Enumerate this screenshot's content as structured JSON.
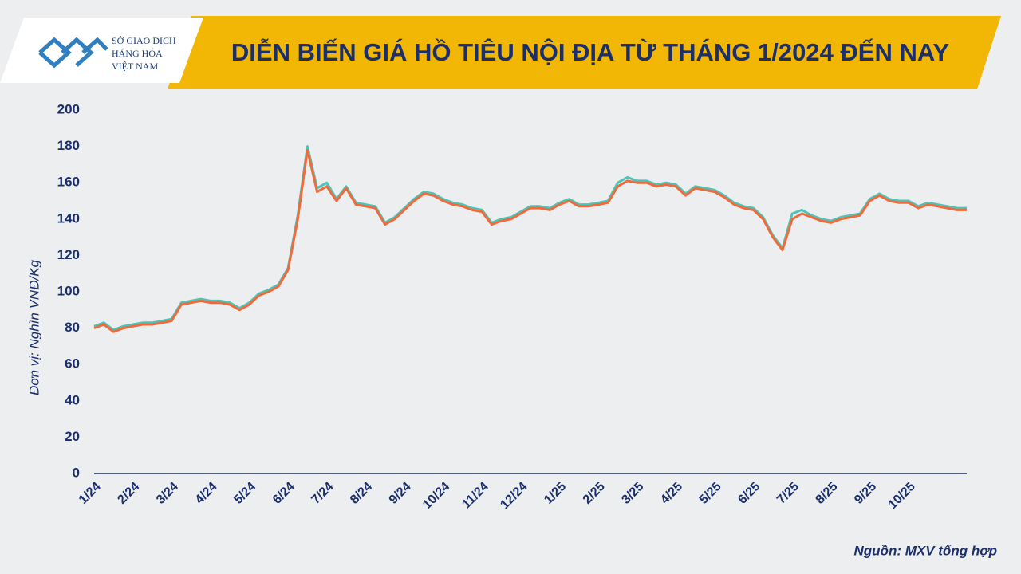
{
  "logo": {
    "lines": [
      "SỞ GIAO DỊCH",
      "HÀNG HÓA",
      "VIỆT NAM"
    ]
  },
  "chart_data": {
    "type": "line",
    "title": "DIỄN BIẾN GIÁ HỒ TIÊU NỘI ĐỊA TỪ THÁNG 1/2024 ĐẾN NAY",
    "y_label": "Đơn vị: Nghìn VNĐ/Kg",
    "source": "Nguồn: MXV tổng hợp",
    "categories": [
      "1/24",
      null,
      null,
      null,
      "2/24",
      null,
      null,
      null,
      "3/24",
      null,
      null,
      null,
      "4/24",
      null,
      null,
      null,
      "5/24",
      null,
      null,
      null,
      "6/24",
      null,
      null,
      null,
      "7/24",
      null,
      null,
      null,
      "8/24",
      null,
      null,
      null,
      "9/24",
      null,
      null,
      null,
      "10/24",
      null,
      null,
      null,
      "11/24",
      null,
      null,
      null,
      "12/24",
      null,
      null,
      null,
      "1/25",
      null,
      null,
      null,
      "2/25",
      null,
      null,
      null,
      "3/25",
      null,
      null,
      null,
      "4/25",
      null,
      null,
      null,
      "5/25",
      null,
      null,
      null,
      "6/25",
      null,
      null,
      null,
      "7/25",
      null,
      null,
      null,
      "8/25",
      null,
      null,
      null,
      "9/25",
      null,
      null,
      null,
      "10/25",
      null,
      null,
      null,
      null,
      null,
      null
    ],
    "series": [
      {
        "color": "#4dc4b8",
        "values": [
          81,
          83,
          79,
          81,
          82,
          83,
          83,
          84,
          85,
          94,
          95,
          96,
          95,
          95,
          94,
          91,
          94,
          99,
          101,
          104,
          113,
          142,
          180,
          157,
          160,
          151,
          158,
          149,
          148,
          147,
          138,
          141,
          146,
          151,
          155,
          154,
          151,
          149,
          148,
          146,
          145,
          138,
          140,
          141,
          144,
          147,
          147,
          146,
          149,
          151,
          148,
          148,
          149,
          150,
          160,
          163,
          161,
          161,
          159,
          160,
          159,
          154,
          158,
          157,
          156,
          153,
          149,
          147,
          146,
          141,
          131,
          124,
          143,
          145,
          142,
          140,
          139,
          141,
          142,
          143,
          151,
          154,
          151,
          150,
          150,
          147,
          149,
          148,
          147,
          146,
          146
        ]
      },
      {
        "color": "#f06a3c",
        "values": [
          80,
          82,
          78,
          80,
          81,
          82,
          82,
          83,
          84,
          93,
          94,
          95,
          94,
          94,
          93,
          90,
          93,
          98,
          100,
          103,
          112,
          140,
          178,
          155,
          158,
          150,
          157,
          148,
          147,
          146,
          137,
          140,
          145,
          150,
          154,
          153,
          150,
          148,
          147,
          145,
          144,
          137,
          139,
          140,
          143,
          146,
          146,
          145,
          148,
          150,
          147,
          147,
          148,
          149,
          158,
          161,
          160,
          160,
          158,
          159,
          158,
          153,
          157,
          156,
          155,
          152,
          148,
          146,
          145,
          140,
          130,
          123,
          140,
          143,
          141,
          139,
          138,
          140,
          141,
          142,
          150,
          153,
          150,
          149,
          149,
          146,
          148,
          147,
          146,
          145,
          145
        ]
      }
    ],
    "ylim": [
      0,
      200
    ],
    "yticks": [
      0,
      20,
      40,
      60,
      80,
      100,
      120,
      140,
      160,
      180,
      200
    ],
    "grid": false
  }
}
